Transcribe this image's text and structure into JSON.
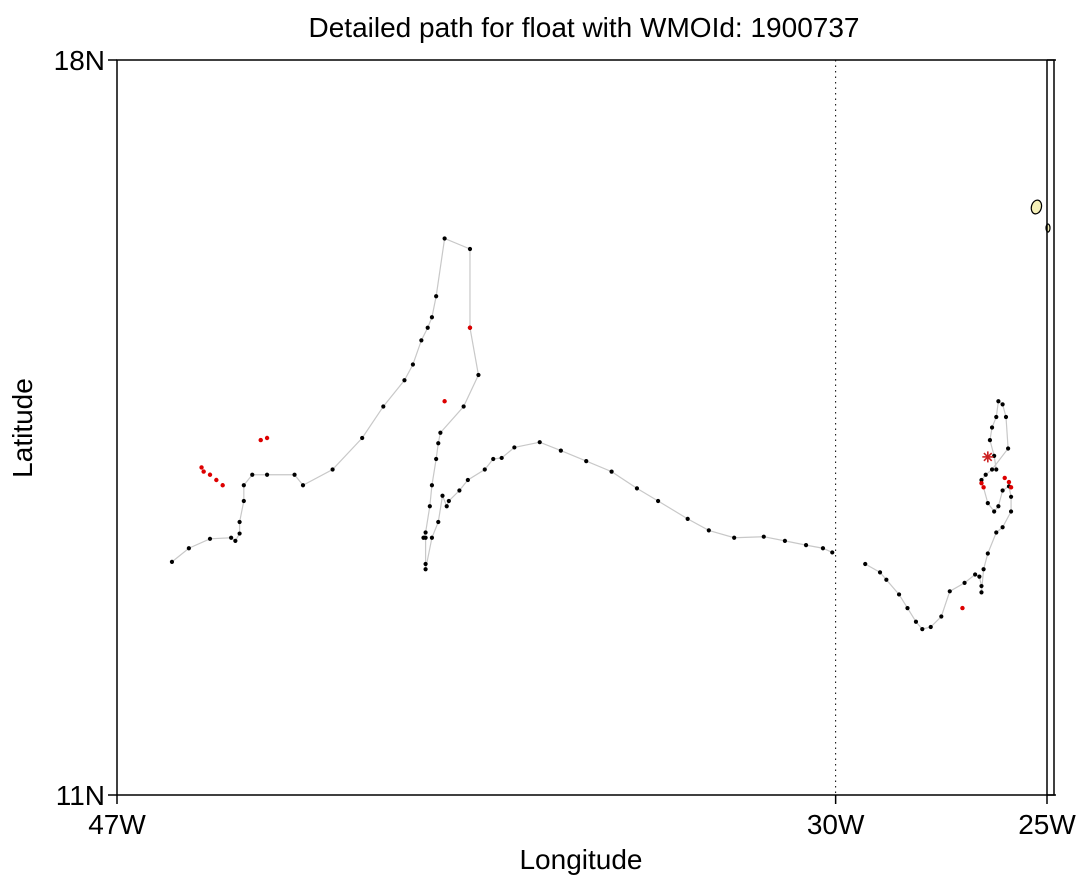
{
  "chart_data": {
    "type": "scatter",
    "title": "Detailed path for float with WMOId: 1900737",
    "xlabel": "Longitude",
    "ylabel": "Latitude",
    "xlim": [
      -47,
      -25
    ],
    "ylim": [
      11,
      18
    ],
    "x_ticks": [
      {
        "value": -47,
        "label": "47W"
      },
      {
        "value": -30,
        "label": "30W"
      },
      {
        "value": -25,
        "label": "25W"
      }
    ],
    "y_ticks": [
      {
        "value": 11,
        "label": "11N"
      },
      {
        "value": 18,
        "label": "18N"
      }
    ],
    "reference_line": {
      "x": -30,
      "style": "dotted"
    },
    "colors": {
      "profile": "#000000",
      "highlight": "#dd0000",
      "path": "#c8c8c8",
      "land": "#f5f0b8",
      "deploy_marker": "#cc2222"
    },
    "track_segments": [
      [
        [
          -45.7,
          13.22
        ],
        [
          -45.3,
          13.35
        ],
        [
          -44.8,
          13.44
        ],
        [
          -44.3,
          13.45
        ],
        [
          -44.2,
          13.42
        ],
        [
          -44.1,
          13.49
        ],
        [
          -44.1,
          13.6
        ],
        [
          -44.0,
          13.8
        ],
        [
          -44.0,
          13.95
        ],
        [
          -43.8,
          14.05
        ],
        [
          -43.45,
          14.05
        ],
        [
          -42.8,
          14.05
        ],
        [
          -42.6,
          13.95
        ],
        [
          -41.9,
          14.1
        ],
        [
          -41.2,
          14.4
        ],
        [
          -40.7,
          14.7
        ],
        [
          -40.2,
          14.95
        ],
        [
          -40.0,
          15.1
        ],
        [
          -39.8,
          15.33
        ],
        [
          -39.65,
          15.45
        ],
        [
          -39.55,
          15.55
        ],
        [
          -39.45,
          15.75
        ],
        [
          -39.25,
          16.3
        ],
        [
          -38.65,
          16.2
        ],
        [
          -38.65,
          15.45
        ],
        [
          -38.45,
          15.0
        ],
        [
          -38.8,
          14.7
        ],
        [
          -39.35,
          14.45
        ],
        [
          -39.4,
          14.35
        ],
        [
          -39.45,
          14.2
        ],
        [
          -39.55,
          13.95
        ],
        [
          -39.6,
          13.75
        ],
        [
          -39.7,
          13.5
        ],
        [
          -39.75,
          13.45
        ],
        [
          -39.7,
          13.45
        ],
        [
          -39.7,
          13.2
        ],
        [
          -39.7,
          13.15
        ],
        [
          -39.55,
          13.45
        ],
        [
          -39.4,
          13.6
        ],
        [
          -39.3,
          13.85
        ],
        [
          -39.2,
          13.75
        ],
        [
          -39.15,
          13.8
        ],
        [
          -38.9,
          13.9
        ],
        [
          -38.7,
          14.0
        ],
        [
          -38.3,
          14.1
        ],
        [
          -38.1,
          14.2
        ],
        [
          -37.9,
          14.21
        ],
        [
          -37.6,
          14.31
        ],
        [
          -37.0,
          14.36
        ],
        [
          -36.5,
          14.28
        ],
        [
          -35.9,
          14.18
        ],
        [
          -35.3,
          14.08
        ],
        [
          -34.7,
          13.92
        ],
        [
          -34.2,
          13.8
        ],
        [
          -33.5,
          13.63
        ],
        [
          -33.0,
          13.52
        ],
        [
          -32.4,
          13.45
        ],
        [
          -31.7,
          13.46
        ],
        [
          -31.2,
          13.42
        ],
        [
          -30.7,
          13.38
        ],
        [
          -30.3,
          13.35
        ],
        [
          -30.08,
          13.31
        ]
      ],
      [
        [
          -29.3,
          13.2
        ],
        [
          -28.95,
          13.12
        ],
        [
          -28.8,
          13.05
        ],
        [
          -28.5,
          12.91
        ],
        [
          -28.3,
          12.78
        ],
        [
          -28.1,
          12.65
        ],
        [
          -27.95,
          12.58
        ],
        [
          -27.75,
          12.6
        ],
        [
          -27.5,
          12.7
        ],
        [
          -27.3,
          12.94
        ],
        [
          -26.95,
          13.02
        ],
        [
          -26.7,
          13.1
        ],
        [
          -26.6,
          13.08
        ],
        [
          -26.55,
          12.99
        ],
        [
          -26.55,
          12.93
        ],
        [
          -26.5,
          13.15
        ],
        [
          -26.4,
          13.3
        ],
        [
          -26.2,
          13.5
        ],
        [
          -26.05,
          13.55
        ],
        [
          -25.85,
          13.7
        ],
        [
          -25.85,
          13.84
        ],
        [
          -25.9,
          13.94
        ],
        [
          -26.05,
          13.9
        ],
        [
          -26.15,
          13.75
        ],
        [
          -26.25,
          13.7
        ],
        [
          -26.4,
          13.78
        ],
        [
          -26.55,
          14.0
        ],
        [
          -26.45,
          14.05
        ],
        [
          -26.3,
          14.1
        ],
        [
          -25.92,
          14.3
        ],
        [
          -25.97,
          14.6
        ],
        [
          -26.05,
          14.72
        ],
        [
          -26.15,
          14.75
        ],
        [
          -26.2,
          14.6
        ],
        [
          -26.3,
          14.5
        ],
        [
          -26.35,
          14.38
        ],
        [
          -26.25,
          14.23
        ],
        [
          -26.2,
          14.1
        ]
      ]
    ],
    "highlighted_points": [
      [
        -45.0,
        14.12
      ],
      [
        -44.8,
        14.05
      ],
      [
        -44.95,
        14.08
      ],
      [
        -44.65,
        14.0
      ],
      [
        -44.5,
        13.95
      ],
      [
        -43.6,
        14.38
      ],
      [
        -43.45,
        14.4
      ],
      [
        -38.65,
        15.45
      ],
      [
        -39.25,
        14.75
      ],
      [
        -27.0,
        12.78
      ],
      [
        -26.5,
        13.93
      ],
      [
        -26.55,
        13.97
      ],
      [
        -25.9,
        13.98
      ],
      [
        -26.0,
        14.02
      ],
      [
        -25.85,
        13.93
      ]
    ],
    "deployment_point": [
      -26.4,
      14.22
    ],
    "land_islands": [
      {
        "shape": "ellipse",
        "center": [
          -25.25,
          16.6
        ]
      },
      {
        "shape": "sliver",
        "center": [
          -25.0,
          16.4
        ]
      }
    ]
  }
}
